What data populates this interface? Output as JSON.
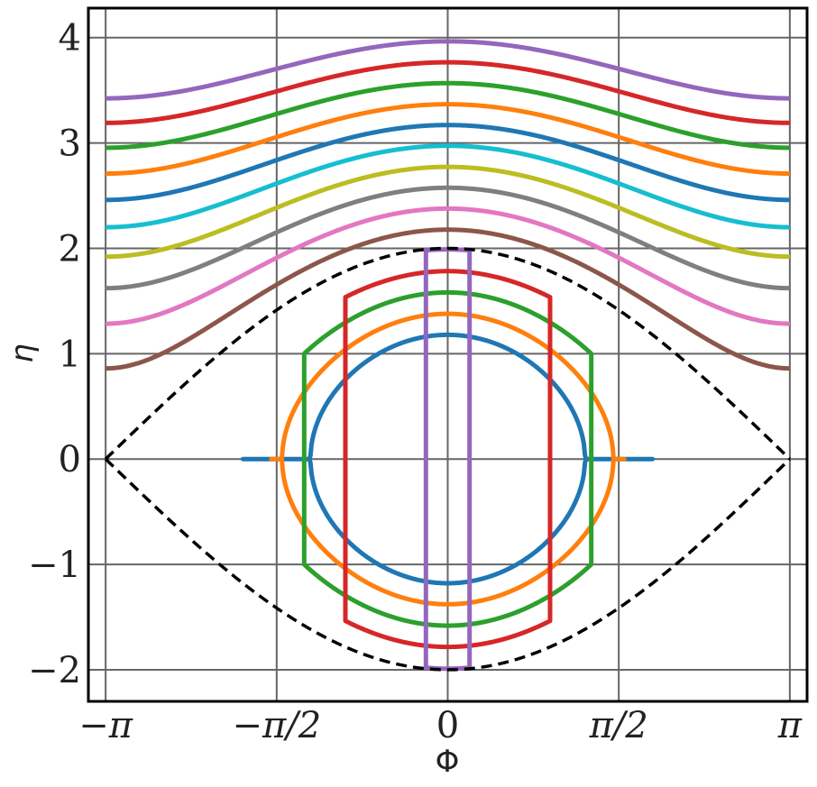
{
  "chart_data": {
    "type": "line",
    "title": "",
    "xlabel": "Φ",
    "ylabel": "η",
    "xlim": [
      -3.3,
      3.3
    ],
    "ylim": [
      -2.3,
      4.28
    ],
    "grid": true,
    "legend": "none",
    "x_ticks": [
      {
        "value": -3.14159,
        "label": "−π",
        "italic": true
      },
      {
        "value": -1.5708,
        "label": "−π/2",
        "italic": true
      },
      {
        "value": 0,
        "label": "0",
        "italic": false
      },
      {
        "value": 1.5708,
        "label": "π/2",
        "italic": true
      },
      {
        "value": 3.14159,
        "label": "π",
        "italic": true
      }
    ],
    "y_ticks": [
      {
        "value": -2,
        "label": "−2"
      },
      {
        "value": -1,
        "label": "−1"
      },
      {
        "value": 0,
        "label": "0"
      },
      {
        "value": 1,
        "label": "1"
      },
      {
        "value": 2,
        "label": "2"
      },
      {
        "value": 3,
        "label": "3"
      },
      {
        "value": 4,
        "label": "4"
      }
    ],
    "curve_equation": "eta^2 = 2*(1 + cos(phi)) + H",
    "separatrix": {
      "H": 0,
      "color": "#000000",
      "style": "dashed"
    },
    "series": [
      {
        "kind": "closed",
        "H": -2.61,
        "color": "#1f77b4"
      },
      {
        "kind": "closed",
        "H": -2.1,
        "color": "#ff7f0e"
      },
      {
        "kind": "closed",
        "H": -1.5,
        "color": "#2ca02c"
      },
      {
        "kind": "closed",
        "H": -0.82,
        "color": "#d62728"
      },
      {
        "kind": "closed",
        "H": -0.04,
        "color": "#9467bd"
      },
      {
        "kind": "open",
        "H": 0.74,
        "color": "#8c564b"
      },
      {
        "kind": "open",
        "H": 1.65,
        "color": "#e377c2"
      },
      {
        "kind": "open",
        "H": 2.63,
        "color": "#7f7f7f"
      },
      {
        "kind": "open",
        "H": 3.69,
        "color": "#bcbd22"
      },
      {
        "kind": "open",
        "H": 4.84,
        "color": "#17becf"
      },
      {
        "kind": "open",
        "H": 6.05,
        "color": "#1f77b4"
      },
      {
        "kind": "open",
        "H": 7.34,
        "color": "#ff7f0e"
      },
      {
        "kind": "open",
        "H": 8.73,
        "color": "#2ca02c"
      },
      {
        "kind": "open",
        "H": 10.18,
        "color": "#d62728"
      },
      {
        "kind": "open",
        "H": 11.72,
        "color": "#9467bd"
      }
    ]
  }
}
